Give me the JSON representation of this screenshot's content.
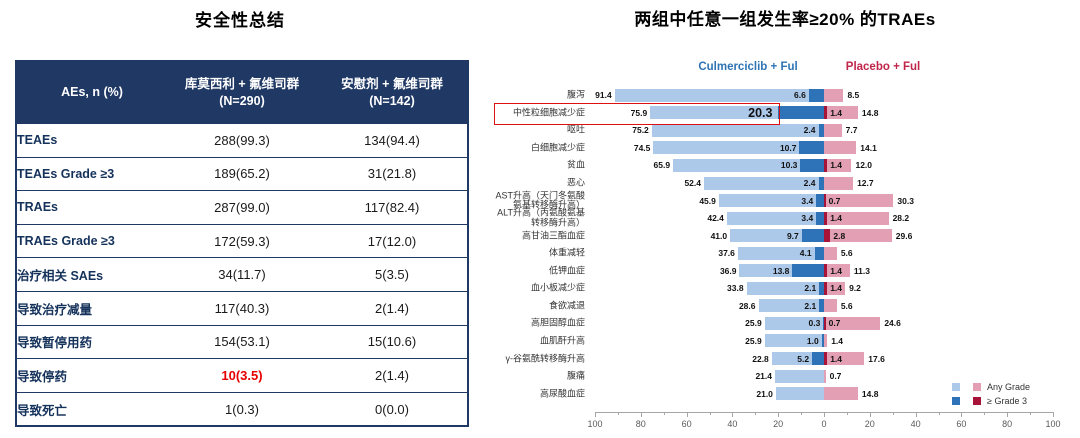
{
  "table_panel": {
    "title": "安全性总结",
    "table": {
      "header": {
        "col1": "AEs, n (%)",
        "col2_line1": "库莫西利 + 氟维司群",
        "col2_line2": "(N=290)",
        "col3_line1": "安慰剂 + 氟维司群",
        "col3_line2": "(N=142)"
      },
      "rows": [
        {
          "label": "TEAEs",
          "v1": "288(99.3)",
          "v2": "134(94.4)",
          "v1_red": false
        },
        {
          "label": "TEAEs Grade ≥3",
          "v1": "189(65.2)",
          "v2": "31(21.8)",
          "v1_red": false
        },
        {
          "label": "TRAEs",
          "v1": "287(99.0)",
          "v2": "117(82.4)",
          "v1_red": false
        },
        {
          "label": "TRAEs Grade ≥3",
          "v1": "172(59.3)",
          "v2": "17(12.0)",
          "v1_red": false
        },
        {
          "label": "治疗相关 SAEs",
          "v1": "34(11.7)",
          "v2": "5(3.5)",
          "v1_red": false
        },
        {
          "label": "导致治疗减量",
          "v1": "117(40.3)",
          "v2": "2(1.4)",
          "v1_red": false
        },
        {
          "label": "导致暂停用药",
          "v1": "154(53.1)",
          "v2": "15(10.6)",
          "v1_red": false
        },
        {
          "label": "导致停药",
          "v1": "10(3.5)",
          "v2": "2(1.4)",
          "v1_red": true
        },
        {
          "label": "导致死亡",
          "v1": "1(0.3)",
          "v2": "0(0.0)",
          "v1_red": false
        }
      ]
    }
  },
  "chart_panel": {
    "title": "两组中任意一组发生率≥20% 的TRAEs",
    "legend_top": {
      "left": "Culmerciclib + Ful",
      "right": "Placebo + Ful"
    },
    "legend_bottom": {
      "any": "Any Grade",
      "grade3": "≥ Grade 3"
    },
    "colors": {
      "any_grade_left": "#ADC9EA",
      "grade3_left": "#2E73B8",
      "any_grade_right": "#E3A0B4",
      "grade3_right": "#A81338",
      "legend_left_text": "#2E74B5",
      "legend_right_text": "#C0254A",
      "highlight_box": "#DD1111",
      "axis": "#A6A6A6",
      "table_navy": "#1F3864",
      "table_red_value": "#E60000"
    }
  },
  "chart_data": {
    "type": "bar",
    "variant": "butterfly",
    "title": "两组中任意一组发生率≥20% 的TRAEs",
    "unit": "%",
    "xlabel": "",
    "x_axis_ticks": [
      100,
      80,
      60,
      40,
      20,
      0,
      20,
      40,
      60,
      80,
      100
    ],
    "x_range_each_side": [
      0,
      100
    ],
    "legend": [
      "Culmerciclib + Ful Any Grade",
      "Culmerciclib + Ful ≥ Grade 3",
      "Placebo + Ful Any Grade",
      "Placebo + Ful ≥ Grade 3"
    ],
    "highlighted_category": "中性粒细胞减少症",
    "rows": [
      {
        "label": "腹泻",
        "cul_any": 91.4,
        "cul_g3": 6.6,
        "pbo_g3": null,
        "pbo_any": 8.5,
        "highlight": false
      },
      {
        "label": "中性粒细胞减少症",
        "cul_any": 75.9,
        "cul_g3": 20.3,
        "pbo_g3": 1.4,
        "pbo_any": 14.8,
        "highlight": true
      },
      {
        "label": "呕吐",
        "cul_any": 75.2,
        "cul_g3": 2.4,
        "pbo_g3": null,
        "pbo_any": 7.7,
        "highlight": false
      },
      {
        "label": "白细胞减少症",
        "cul_any": 74.5,
        "cul_g3": 10.7,
        "pbo_g3": null,
        "pbo_any": 14.1,
        "highlight": false
      },
      {
        "label": "贫血",
        "cul_any": 65.9,
        "cul_g3": 10.3,
        "pbo_g3": 1.4,
        "pbo_any": 12.0,
        "highlight": false
      },
      {
        "label": "恶心",
        "cul_any": 52.4,
        "cul_g3": 2.4,
        "pbo_g3": null,
        "pbo_any": 12.7,
        "highlight": false
      },
      {
        "label": "AST升高（天门冬氨酸氨基转移酶升高）",
        "cul_any": 45.9,
        "cul_g3": 3.4,
        "pbo_g3": 0.7,
        "pbo_any": 30.3,
        "highlight": false
      },
      {
        "label": "ALT升高（丙氨酸氨基转移酶升高）",
        "cul_any": 42.4,
        "cul_g3": 3.4,
        "pbo_g3": 1.4,
        "pbo_any": 28.2,
        "highlight": false
      },
      {
        "label": "高甘油三酯血症",
        "cul_any": 41.0,
        "cul_g3": 9.7,
        "pbo_g3": 2.8,
        "pbo_any": 29.6,
        "highlight": false
      },
      {
        "label": "体重减轻",
        "cul_any": 37.6,
        "cul_g3": 4.1,
        "pbo_g3": null,
        "pbo_any": 5.6,
        "highlight": false
      },
      {
        "label": "低钾血症",
        "cul_any": 36.9,
        "cul_g3": 13.8,
        "pbo_g3": 1.4,
        "pbo_any": 11.3,
        "highlight": false
      },
      {
        "label": "血小板减少症",
        "cul_any": 33.8,
        "cul_g3": 2.1,
        "pbo_g3": 1.4,
        "pbo_any": 9.2,
        "highlight": false
      },
      {
        "label": "食欲减退",
        "cul_any": 28.6,
        "cul_g3": 2.1,
        "pbo_g3": null,
        "pbo_any": 5.6,
        "highlight": false
      },
      {
        "label": "高胆固醇血症",
        "cul_any": 25.9,
        "cul_g3": 0.3,
        "pbo_g3": 0.7,
        "pbo_any": 24.6,
        "highlight": false
      },
      {
        "label": "血肌酐升高",
        "cul_any": 25.9,
        "cul_g3": 1.0,
        "pbo_g3": null,
        "pbo_any": 1.4,
        "highlight": false
      },
      {
        "label": "γ-谷氨酰转移酶升高",
        "cul_any": 22.8,
        "cul_g3": 5.2,
        "pbo_g3": 1.4,
        "pbo_any": 17.6,
        "highlight": false
      },
      {
        "label": "腹痛",
        "cul_any": 21.4,
        "cul_g3": null,
        "pbo_g3": null,
        "pbo_any": 0.7,
        "highlight": false
      },
      {
        "label": "高尿酸血症",
        "cul_any": 21.0,
        "cul_g3": null,
        "pbo_g3": null,
        "pbo_any": 14.8,
        "highlight": false
      }
    ]
  }
}
